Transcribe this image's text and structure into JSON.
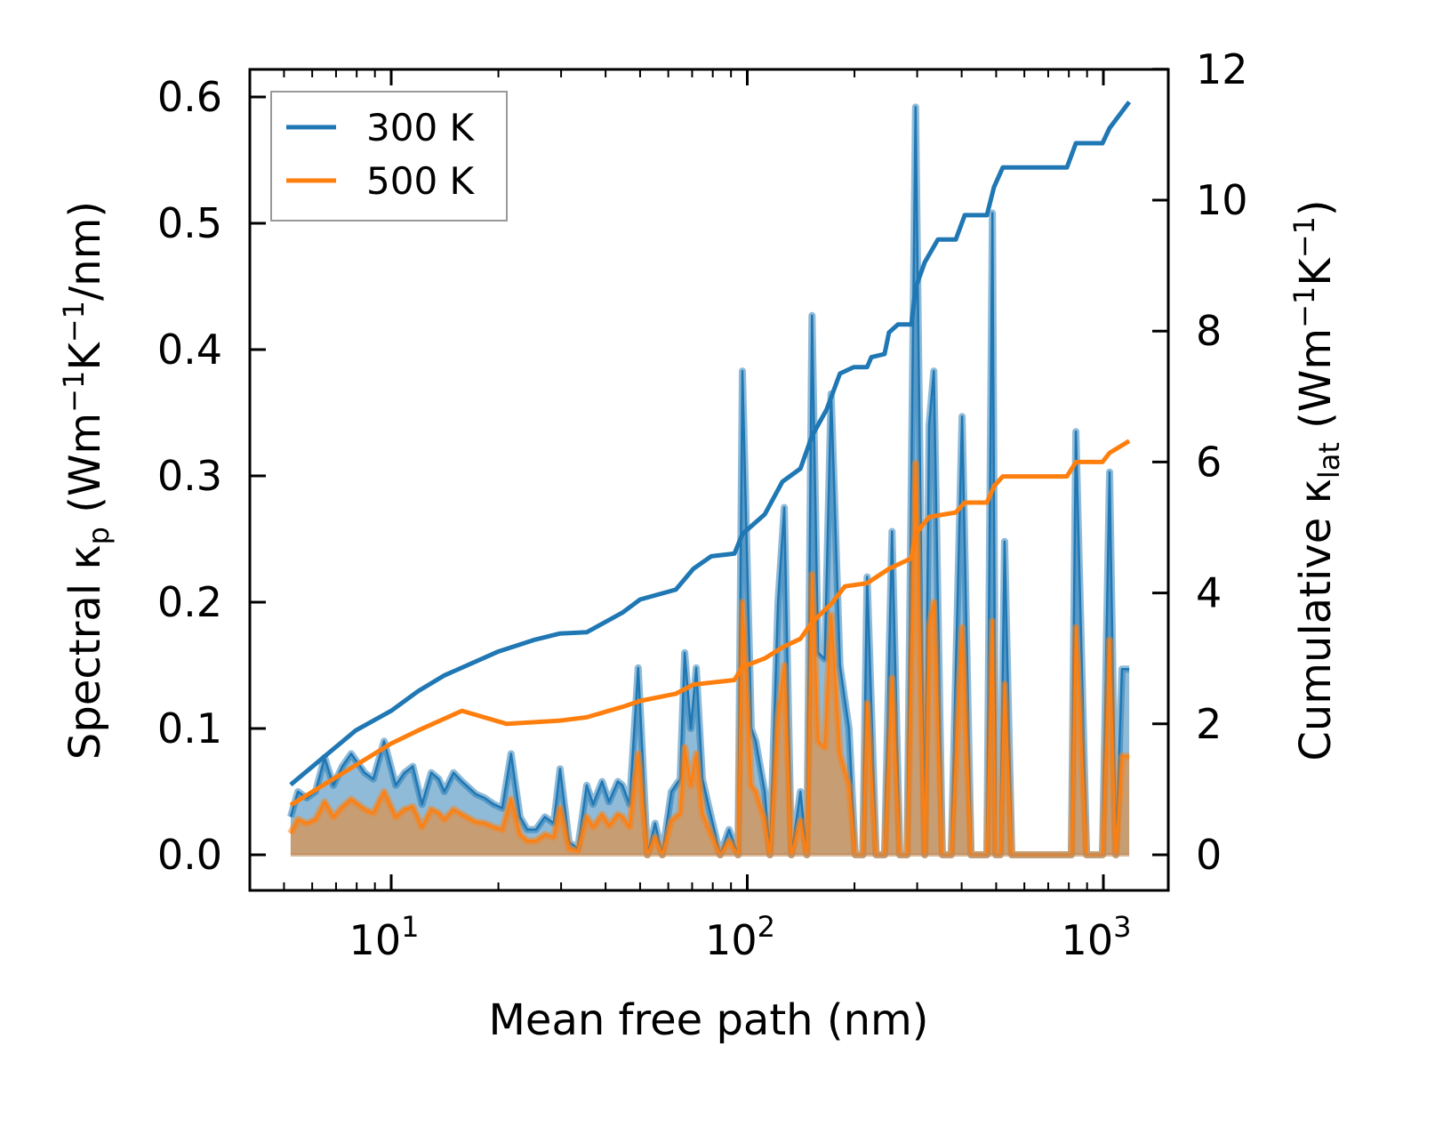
{
  "chart_data": {
    "type": "line",
    "xscale": "log",
    "xlabel": "Mean free path (nm)",
    "ylabel_left": {
      "main": "Spectral κ",
      "sub": "p",
      "r1": " (Wm",
      "s1": "−1",
      "r2": "K",
      "s2": "−1",
      "r3": "/nm)"
    },
    "ylabel_right": {
      "main": "Cumulative κ",
      "sub": "lat",
      "r1": " (Wm",
      "s1": "−1",
      "r2": "K",
      "s2": "−1",
      "r3": ")"
    },
    "xlim": [
      4.0,
      1550
    ],
    "ylim_left": [
      -0.03,
      0.62
    ],
    "ylim_right": [
      -0.6,
      12.0
    ],
    "xticks": [
      {
        "base": "10",
        "exp": "1",
        "value": 10
      },
      {
        "base": "10",
        "exp": "2",
        "value": 100
      },
      {
        "base": "10",
        "exp": "3",
        "value": 1000
      }
    ],
    "yticks_left": [
      "0.0",
      "0.1",
      "0.2",
      "0.3",
      "0.4",
      "0.5",
      "0.6"
    ],
    "yticks_right": [
      "0",
      "2",
      "4",
      "6",
      "8",
      "10",
      "12"
    ],
    "legend": {
      "placement": "top-left",
      "entries": [
        {
          "label": "300 K",
          "color": "#1f77b4"
        },
        {
          "label": "500 K",
          "color": "#ff7f0e"
        }
      ]
    },
    "colors": {
      "300K": "#1f77b4",
      "500K": "#ff7f0e"
    },
    "spectral": {
      "x": [
        5.22,
        5.47,
        5.79,
        6.13,
        6.5,
        6.88,
        7.29,
        7.72,
        8.42,
        8.91,
        9.55,
        10.3,
        10.9,
        11.5,
        12.2,
        12.96,
        13.6,
        14.1,
        14.96,
        15.8,
        17.3,
        18.3,
        19.4,
        20.5,
        21.7,
        23.0,
        24.1,
        25.5,
        27.0,
        28.6,
        29.8,
        31.6,
        33.4,
        35.4,
        36.9,
        39.1,
        40.9,
        43.3,
        44.6,
        46.7,
        49.4,
        52.4,
        55.1,
        57.7,
        61.2,
        64.8,
        66.7,
        69.4,
        71.9,
        74.8,
        79.2,
        83.9,
        88.9,
        94.2,
        96.9,
        102.6,
        105.6,
        111.9,
        115.8,
        122,
        127,
        133,
        141,
        147,
        152,
        158,
        165,
        172,
        182,
        193,
        201,
        211,
        217,
        230,
        243,
        255,
        268,
        281,
        297,
        315,
        324,
        334,
        353,
        374,
        401,
        425,
        471,
        488,
        499,
        513,
        528,
        553,
        813,
        837,
        897,
        994,
        1041,
        1084,
        1128,
        1182
      ],
      "y300": [
        0.03,
        0.05,
        0.045,
        0.05,
        0.077,
        0.055,
        0.07,
        0.08,
        0.065,
        0.06,
        0.09,
        0.055,
        0.065,
        0.07,
        0.04,
        0.065,
        0.06,
        0.05,
        0.065,
        0.058,
        0.048,
        0.045,
        0.04,
        0.037,
        0.08,
        0.03,
        0.02,
        0.02,
        0.03,
        0.025,
        0.068,
        0.01,
        0.005,
        0.055,
        0.04,
        0.058,
        0.042,
        0.058,
        0.055,
        0.04,
        0.148,
        0.0,
        0.025,
        0.0,
        0.05,
        0.06,
        0.16,
        0.1,
        0.148,
        0.06,
        0.03,
        0.0,
        0.02,
        0.0,
        0.383,
        0.1,
        0.09,
        0.05,
        0.0,
        0.2,
        0.275,
        0.0,
        0.05,
        0.0,
        0.427,
        0.16,
        0.155,
        0.365,
        0.15,
        0.1,
        0.0,
        0.0,
        0.22,
        0.0,
        0.0,
        0.256,
        0.0,
        0.0,
        0.592,
        0.0,
        0.34,
        0.383,
        0.0,
        0.0,
        0.347,
        0.0,
        0.0,
        0.508,
        0.0,
        0.0,
        0.248,
        0.0,
        0.0,
        0.335,
        0.0,
        0.0,
        0.303,
        0.0,
        0.147,
        0.147
      ],
      "y500": [
        0.017,
        0.028,
        0.025,
        0.028,
        0.042,
        0.03,
        0.038,
        0.044,
        0.036,
        0.033,
        0.05,
        0.03,
        0.036,
        0.038,
        0.022,
        0.036,
        0.033,
        0.028,
        0.036,
        0.032,
        0.026,
        0.025,
        0.022,
        0.02,
        0.044,
        0.016,
        0.011,
        0.011,
        0.016,
        0.014,
        0.037,
        0.005,
        0.003,
        0.03,
        0.022,
        0.032,
        0.023,
        0.032,
        0.03,
        0.022,
        0.08,
        0.0,
        0.014,
        0.0,
        0.027,
        0.033,
        0.085,
        0.055,
        0.08,
        0.033,
        0.016,
        0.0,
        0.011,
        0.0,
        0.2,
        0.055,
        0.05,
        0.027,
        0.0,
        0.11,
        0.15,
        0.0,
        0.027,
        0.0,
        0.222,
        0.09,
        0.085,
        0.19,
        0.08,
        0.055,
        0.0,
        0.0,
        0.12,
        0.0,
        0.0,
        0.14,
        0.0,
        0.0,
        0.31,
        0.0,
        0.18,
        0.2,
        0.0,
        0.0,
        0.18,
        0.0,
        0.0,
        0.185,
        0.0,
        0.0,
        0.135,
        0.0,
        0.0,
        0.18,
        0.0,
        0.0,
        0.17,
        0.0,
        0.078,
        0.078
      ]
    },
    "cumulative": {
      "300K": {
        "x": [
          5.22,
          7.95,
          10,
          11.9,
          14.1,
          19.9,
          25.1,
          29.8,
          35.4,
          44.6,
          50.0,
          63.0,
          70.6,
          79.2,
          92.0,
          96.9,
          111.9,
          125.5,
          141,
          152,
          167,
          182,
          199,
          217,
          223,
          243,
          250,
          265,
          289,
          297,
          315,
          343,
          385,
          408,
          471,
          493,
          522,
          790,
          837,
          994,
          1041,
          1182
        ],
        "y": [
          1.07,
          1.9,
          2.2,
          2.5,
          2.74,
          3.1,
          3.28,
          3.38,
          3.4,
          3.7,
          3.9,
          4.05,
          4.37,
          4.56,
          4.6,
          4.9,
          5.2,
          5.7,
          5.9,
          6.4,
          6.8,
          7.35,
          7.45,
          7.45,
          7.6,
          7.65,
          7.98,
          8.1,
          8.1,
          8.66,
          9.05,
          9.4,
          9.4,
          9.77,
          9.77,
          10.2,
          10.5,
          10.5,
          10.87,
          10.87,
          11.1,
          11.5
        ]
      },
      "500K": {
        "x": [
          5.22,
          7.95,
          10,
          11.9,
          15.8,
          21.1,
          29.8,
          35.4,
          44.6,
          50.0,
          63.0,
          70.6,
          92.0,
          96.9,
          111.9,
          125.5,
          141,
          152,
          172,
          188,
          217,
          250,
          289,
          297,
          324,
          385,
          408,
          471,
          493,
          522,
          790,
          837,
          994,
          1041,
          1182
        ],
        "y": [
          0.76,
          1.37,
          1.7,
          1.9,
          2.2,
          2.0,
          2.05,
          2.1,
          2.26,
          2.35,
          2.46,
          2.6,
          2.67,
          2.87,
          3.0,
          3.17,
          3.3,
          3.55,
          3.83,
          4.1,
          4.15,
          4.37,
          4.53,
          4.9,
          5.16,
          5.23,
          5.38,
          5.38,
          5.63,
          5.78,
          5.78,
          6.0,
          6.0,
          6.14,
          6.32
        ]
      }
    }
  }
}
